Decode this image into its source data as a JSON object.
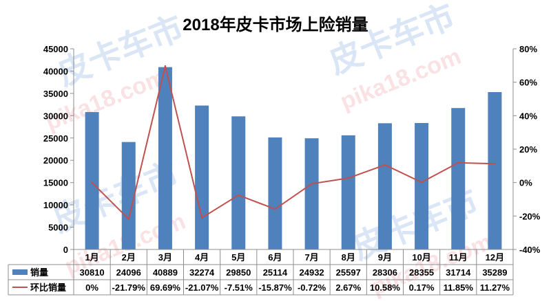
{
  "chart_data": {
    "type": "bar",
    "title": "2018年皮卡市场上险销量",
    "categories": [
      "1月",
      "2月",
      "3月",
      "4月",
      "5月",
      "6月",
      "7月",
      "8月",
      "9月",
      "10月",
      "11月",
      "12月"
    ],
    "series": [
      {
        "name": "销量",
        "type": "bar",
        "axis": "left",
        "values": [
          30810,
          24096,
          40889,
          32274,
          29850,
          25114,
          24932,
          25597,
          28306,
          28355,
          31714,
          35289
        ],
        "labels": [
          "30810",
          "24096",
          "40889",
          "32274",
          "29850",
          "25114",
          "24932",
          "25597",
          "28306",
          "28355",
          "31714",
          "35289"
        ],
        "color": "#4f81bd"
      },
      {
        "name": "环比销量",
        "type": "line",
        "axis": "right",
        "values": [
          0,
          -21.79,
          69.69,
          -21.07,
          -7.51,
          -15.87,
          -0.72,
          2.67,
          10.58,
          0.17,
          11.85,
          11.27
        ],
        "labels": [
          "0%",
          "-21.79%",
          "69.69%",
          "-21.07%",
          "-7.51%",
          "-15.87%",
          "-0.72%",
          "2.67%",
          "10.58%",
          "0.17%",
          "11.85%",
          "11.27%"
        ],
        "color": "#c0504d"
      }
    ],
    "y_left": {
      "range": [
        0,
        45000
      ],
      "ticks": [
        "0",
        "5000",
        "10000",
        "15000",
        "20000",
        "25000",
        "30000",
        "35000",
        "40000",
        "45000"
      ]
    },
    "y_right": {
      "range": [
        -40,
        80
      ],
      "ticks": [
        "-40%",
        "-20%",
        "0%",
        "20%",
        "40%",
        "60%",
        "80%"
      ]
    },
    "data_table": true,
    "grid": false
  },
  "watermarks": [
    "皮卡车市",
    "pika18.com"
  ]
}
